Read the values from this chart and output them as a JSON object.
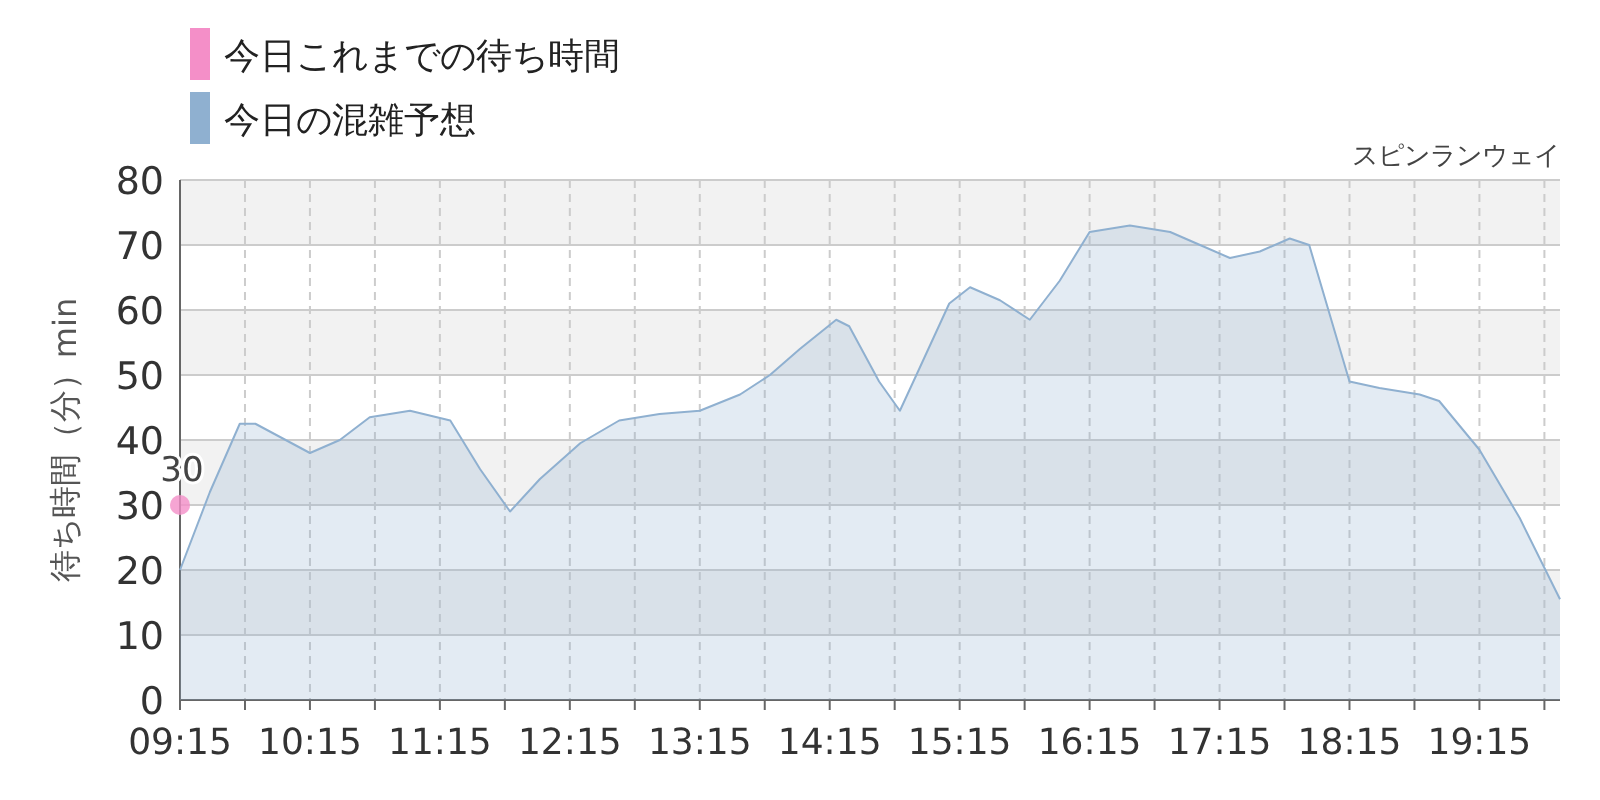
{
  "chart_data": {
    "type": "area",
    "subtitle": "スピンランウェイ",
    "ylabel": "待ち時間（分）min",
    "xlim": [
      9.25,
      19.87
    ],
    "ylim": [
      0,
      80
    ],
    "xticks": [
      {
        "value": 9.25,
        "label": "09:15"
      },
      {
        "value": 9.75,
        "label": null
      },
      {
        "value": 10.25,
        "label": "10:15"
      },
      {
        "value": 10.75,
        "label": null
      },
      {
        "value": 11.25,
        "label": "11:15"
      },
      {
        "value": 11.75,
        "label": null
      },
      {
        "value": 12.25,
        "label": "12:15"
      },
      {
        "value": 12.75,
        "label": null
      },
      {
        "value": 13.25,
        "label": "13:15"
      },
      {
        "value": 13.75,
        "label": null
      },
      {
        "value": 14.25,
        "label": "14:15"
      },
      {
        "value": 14.75,
        "label": null
      },
      {
        "value": 15.25,
        "label": "15:15"
      },
      {
        "value": 15.75,
        "label": null
      },
      {
        "value": 16.25,
        "label": "16:15"
      },
      {
        "value": 16.75,
        "label": null
      },
      {
        "value": 17.25,
        "label": "17:15"
      },
      {
        "value": 17.75,
        "label": null
      },
      {
        "value": 18.25,
        "label": "18:15"
      },
      {
        "value": 18.75,
        "label": null
      },
      {
        "value": 19.25,
        "label": "19:15"
      },
      {
        "value": 19.75,
        "label": null
      }
    ],
    "yticks": [
      0,
      10,
      20,
      30,
      40,
      50,
      60,
      70,
      80
    ],
    "grid": true,
    "legend": "top left",
    "bands": [
      {
        "axis": "y",
        "from": 10,
        "to": 20,
        "color": "#f2f2f2"
      },
      {
        "axis": "y",
        "from": 30,
        "to": 40,
        "color": "#f2f2f2"
      },
      {
        "axis": "y",
        "from": 50,
        "to": 60,
        "color": "#f2f2f2"
      },
      {
        "axis": "y",
        "from": 70,
        "to": 80,
        "color": "#f2f2f2"
      }
    ],
    "series": [
      {
        "name": "今日これまでの待ち時間",
        "type": "scatter",
        "color": "#f48fc8",
        "marker": "circle",
        "x": [
          9.25
        ],
        "values": [
          30
        ],
        "value_labels": [
          "30"
        ]
      },
      {
        "name": "今日の混雑予想",
        "color": "#8fb0d0",
        "x": [
          9.25,
          9.48,
          9.71,
          9.83,
          10.25,
          10.48,
          10.71,
          11.02,
          11.33,
          11.56,
          11.79,
          12.02,
          12.33,
          12.63,
          12.94,
          13.25,
          13.56,
          13.79,
          14.02,
          14.3,
          14.4,
          14.63,
          14.79,
          14.94,
          15.17,
          15.33,
          15.56,
          15.79,
          16.02,
          16.25,
          16.56,
          16.87,
          17.1,
          17.33,
          17.56,
          17.79,
          17.94,
          18.25,
          18.48,
          18.79,
          18.94,
          19.25,
          19.56,
          19.87
        ],
        "values": [
          20,
          32,
          42.5,
          42.5,
          38,
          40,
          43.5,
          44.5,
          43,
          35.5,
          29,
          34,
          39.5,
          43,
          44,
          44.5,
          47,
          50,
          54,
          58.5,
          57.5,
          49,
          44.5,
          51,
          61,
          63.5,
          61.5,
          58.5,
          64.5,
          72,
          73,
          72,
          70,
          68,
          69,
          71,
          70,
          49,
          48,
          47,
          46,
          38.5,
          28,
          15.5
        ]
      }
    ]
  }
}
